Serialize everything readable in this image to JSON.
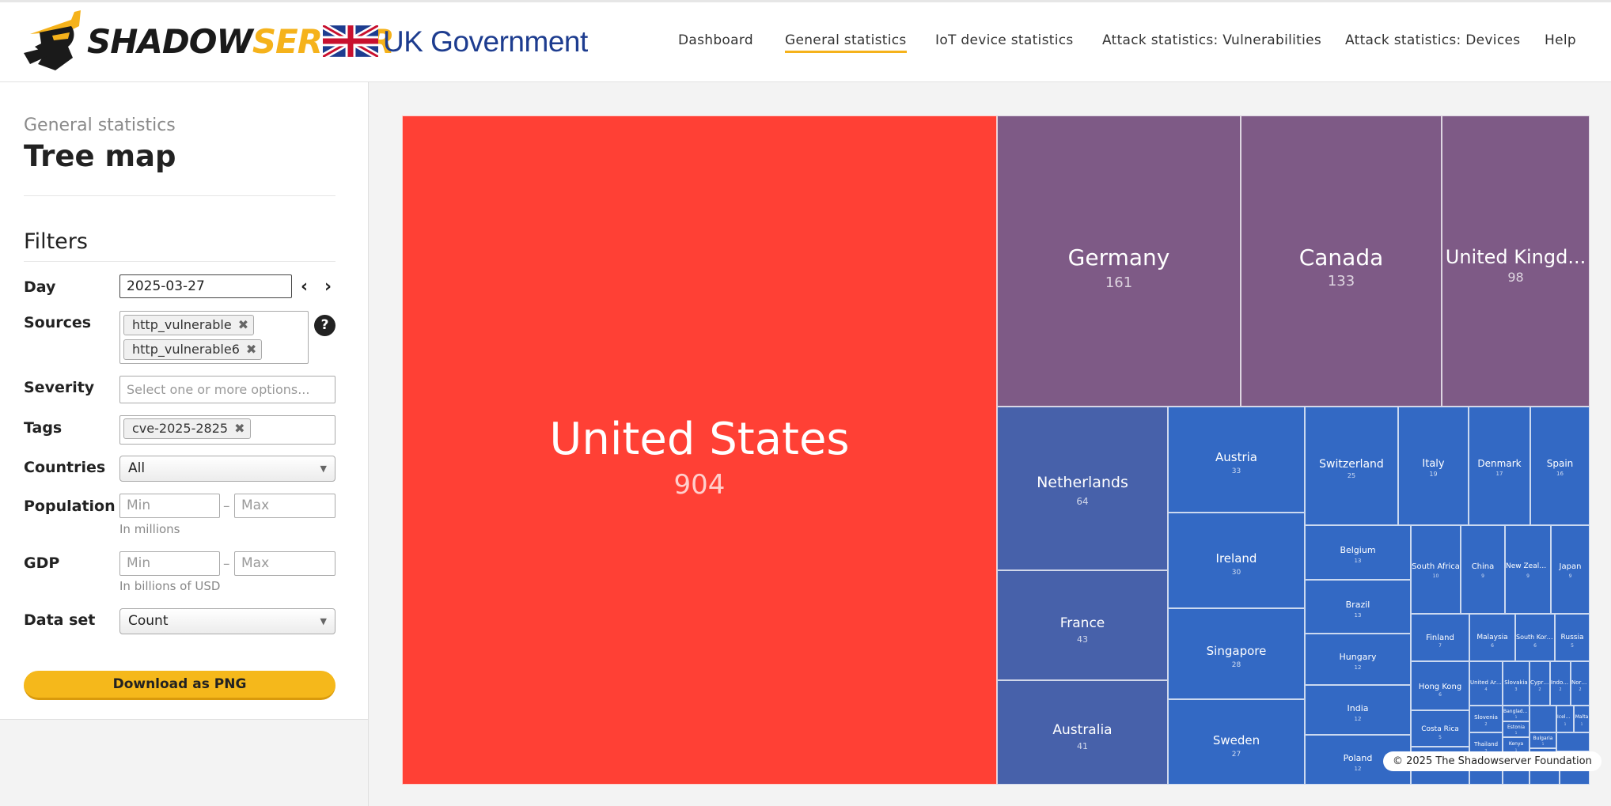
{
  "brand": {
    "logo_part1": "SHADOW",
    "logo_part2": "SERVER",
    "partner": "UK Government",
    "accent": "#f5b21b",
    "logo_icon": "shadowserver-figure-icon",
    "flag_icon": "union-jack-flag-icon"
  },
  "nav": {
    "items": [
      {
        "label": "Dashboard"
      },
      {
        "label": "General statistics",
        "active": true
      },
      {
        "label": "IoT device statistics"
      },
      {
        "label": "Attack statistics: Vulnerabilities"
      },
      {
        "label": "Attack statistics: Devices"
      },
      {
        "label": "Help"
      }
    ]
  },
  "page": {
    "breadcrumb": "General statistics",
    "title": "Tree map"
  },
  "filters": {
    "heading": "Filters",
    "day": {
      "label": "Day",
      "value": "2025-03-27",
      "prev_icon": "chevron-left-icon",
      "next_icon": "chevron-right-icon"
    },
    "sources": {
      "label": "Sources",
      "chips": [
        "http_vulnerable",
        "http_vulnerable6"
      ],
      "help": "?"
    },
    "severity": {
      "label": "Severity",
      "placeholder": "Select one or more options..."
    },
    "tags": {
      "label": "Tags",
      "chips": [
        "cve-2025-2825"
      ]
    },
    "countries": {
      "label": "Countries",
      "value": "All"
    },
    "population": {
      "label": "Population",
      "min_placeholder": "Min",
      "max_placeholder": "Max",
      "hint": "In millions",
      "sep": "–"
    },
    "gdp": {
      "label": "GDP",
      "min_placeholder": "Min",
      "max_placeholder": "Max",
      "hint": "In billions of USD",
      "sep": "–"
    },
    "dataset": {
      "label": "Data set",
      "value": "Count"
    },
    "remove_glyph": "✖"
  },
  "download": {
    "label": "Download as PNG"
  },
  "copyright": "© 2025 The Shadowserver Foundation",
  "chart_data": {
    "type": "treemap",
    "colors": {
      "max": "#ff4035",
      "high": "#7e5a86",
      "mid": "#4761aa",
      "low": "#3369c4"
    },
    "items": [
      {
        "name": "United States",
        "value": 904
      },
      {
        "name": "Germany",
        "value": 161
      },
      {
        "name": "Canada",
        "value": 133
      },
      {
        "name": "United Kingd...",
        "value": 98
      },
      {
        "name": "Netherlands",
        "value": 64
      },
      {
        "name": "France",
        "value": 43
      },
      {
        "name": "Australia",
        "value": 41
      },
      {
        "name": "Austria",
        "value": 33
      },
      {
        "name": "Ireland",
        "value": 30
      },
      {
        "name": "Singapore",
        "value": 28
      },
      {
        "name": "Sweden",
        "value": 27
      },
      {
        "name": "Switzerland",
        "value": 25
      },
      {
        "name": "Italy",
        "value": 19
      },
      {
        "name": "Denmark",
        "value": 17
      },
      {
        "name": "Spain",
        "value": 16
      },
      {
        "name": "Belgium",
        "value": 13
      },
      {
        "name": "Brazil",
        "value": 13
      },
      {
        "name": "Hungary",
        "value": 12
      },
      {
        "name": "India",
        "value": 12
      },
      {
        "name": "Poland",
        "value": 12
      },
      {
        "name": "South Africa",
        "value": 10
      },
      {
        "name": "China",
        "value": 9
      },
      {
        "name": "New Zealand",
        "value": 9
      },
      {
        "name": "Japan",
        "value": 9
      },
      {
        "name": "Finland",
        "value": 7
      },
      {
        "name": "Malaysia",
        "value": 6
      },
      {
        "name": "South Korea",
        "value": 6
      },
      {
        "name": "Russia",
        "value": 5
      },
      {
        "name": "Hong Kong",
        "value": 6
      },
      {
        "name": "Costa Rica",
        "value": 5
      },
      {
        "name": "United Ara...",
        "value": 4
      },
      {
        "name": "Slovakia",
        "value": 3
      },
      {
        "name": "Cyprus",
        "value": 2
      },
      {
        "name": "Indon...",
        "value": 2
      },
      {
        "name": "Norway",
        "value": 2
      },
      {
        "name": "Slovenia",
        "value": 2
      },
      {
        "name": "Thailand",
        "value": 2
      },
      {
        "name": "Bangladesh",
        "value": 1
      },
      {
        "name": "Estonia",
        "value": 1
      },
      {
        "name": "Kenya",
        "value": 1
      },
      {
        "name": "Bulgaria",
        "value": 1
      },
      {
        "name": "Iceland",
        "value": 1
      },
      {
        "name": "Malta",
        "value": 1
      }
    ]
  }
}
